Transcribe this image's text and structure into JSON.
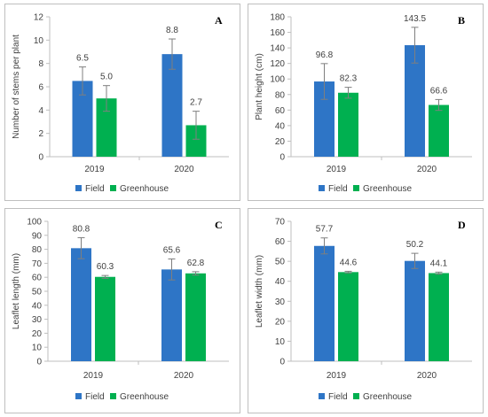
{
  "chart_data": [
    {
      "type": "bar",
      "panel_letter": "A",
      "ylabel": "Number of stems per plant",
      "categories": [
        "2019",
        "2020"
      ],
      "ylim": [
        0,
        12
      ],
      "yticks": [
        0,
        2,
        4,
        6,
        8,
        10,
        12
      ],
      "series": [
        {
          "name": "Field",
          "color": "#2e75c6",
          "values": [
            6.5,
            8.8
          ],
          "errors": [
            1.2,
            1.3
          ],
          "labels": [
            "6.5",
            "8.8"
          ]
        },
        {
          "name": "Greenhouse",
          "color": "#00b050",
          "values": [
            5.0,
            2.7
          ],
          "errors": [
            1.1,
            1.2
          ],
          "labels": [
            "5.0",
            "2.7"
          ]
        }
      ],
      "legend": "bottom"
    },
    {
      "type": "bar",
      "panel_letter": "B",
      "ylabel": "Plant height (cm)",
      "categories": [
        "2019",
        "2020"
      ],
      "ylim": [
        0,
        180
      ],
      "yticks": [
        0,
        20,
        40,
        60,
        80,
        100,
        120,
        140,
        160,
        180
      ],
      "series": [
        {
          "name": "Field",
          "color": "#2e75c6",
          "values": [
            96.8,
            143.5
          ],
          "errors": [
            23,
            23
          ],
          "labels": [
            "96.8",
            "143.5"
          ]
        },
        {
          "name": "Greenhouse",
          "color": "#00b050",
          "values": [
            82.3,
            66.6
          ],
          "errors": [
            7,
            7
          ],
          "labels": [
            "82.3",
            "66.6"
          ]
        }
      ],
      "legend": "bottom"
    },
    {
      "type": "bar",
      "panel_letter": "C",
      "ylabel": "Leaflet length (mm)",
      "categories": [
        "2019",
        "2020"
      ],
      "ylim": [
        0,
        100
      ],
      "yticks": [
        0,
        10,
        20,
        30,
        40,
        50,
        60,
        70,
        80,
        90,
        100
      ],
      "series": [
        {
          "name": "Field",
          "color": "#2e75c6",
          "values": [
            80.8,
            65.6
          ],
          "errors": [
            7.5,
            7.5
          ],
          "labels": [
            "80.8",
            "65.6"
          ]
        },
        {
          "name": "Greenhouse",
          "color": "#00b050",
          "values": [
            60.3,
            62.8
          ],
          "errors": [
            1.0,
            1.2
          ],
          "labels": [
            "60.3",
            "62.8"
          ]
        }
      ],
      "legend": "bottom"
    },
    {
      "type": "bar",
      "panel_letter": "D",
      "ylabel": "Leaflet width (mm)",
      "categories": [
        "2019",
        "2020"
      ],
      "ylim": [
        0,
        70
      ],
      "yticks": [
        0,
        10,
        20,
        30,
        40,
        50,
        60,
        70
      ],
      "series": [
        {
          "name": "Field",
          "color": "#2e75c6",
          "values": [
            57.7,
            50.2
          ],
          "errors": [
            4.0,
            3.8
          ],
          "labels": [
            "57.7",
            "50.2"
          ]
        },
        {
          "name": "Greenhouse",
          "color": "#00b050",
          "values": [
            44.6,
            44.1
          ],
          "errors": [
            0.4,
            0.5
          ],
          "labels": [
            "44.6",
            "44.1"
          ]
        }
      ],
      "legend": "bottom"
    }
  ]
}
